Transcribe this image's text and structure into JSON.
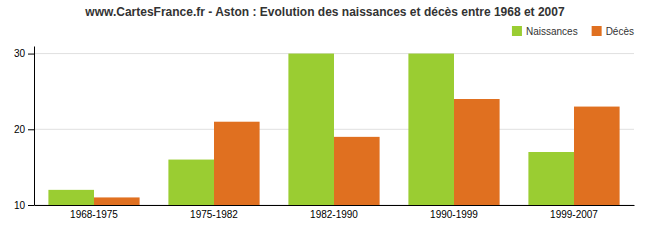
{
  "chart_data": {
    "type": "bar",
    "title": "www.CartesFrance.fr - Aston : Evolution des naissances et décès entre 1968 et 2007",
    "categories": [
      "1968-1975",
      "1975-1982",
      "1982-1990",
      "1990-1999",
      "1999-2007"
    ],
    "series": [
      {
        "name": "Naissances",
        "color": "#9ACD32",
        "values": [
          12,
          16,
          30,
          30,
          17
        ]
      },
      {
        "name": "Décès",
        "color": "#E07020",
        "values": [
          11,
          21,
          19,
          24,
          23
        ]
      }
    ],
    "ylim": [
      10,
      31
    ],
    "yticks": [
      10,
      20,
      30
    ],
    "grid": true,
    "legend": "upper right"
  }
}
